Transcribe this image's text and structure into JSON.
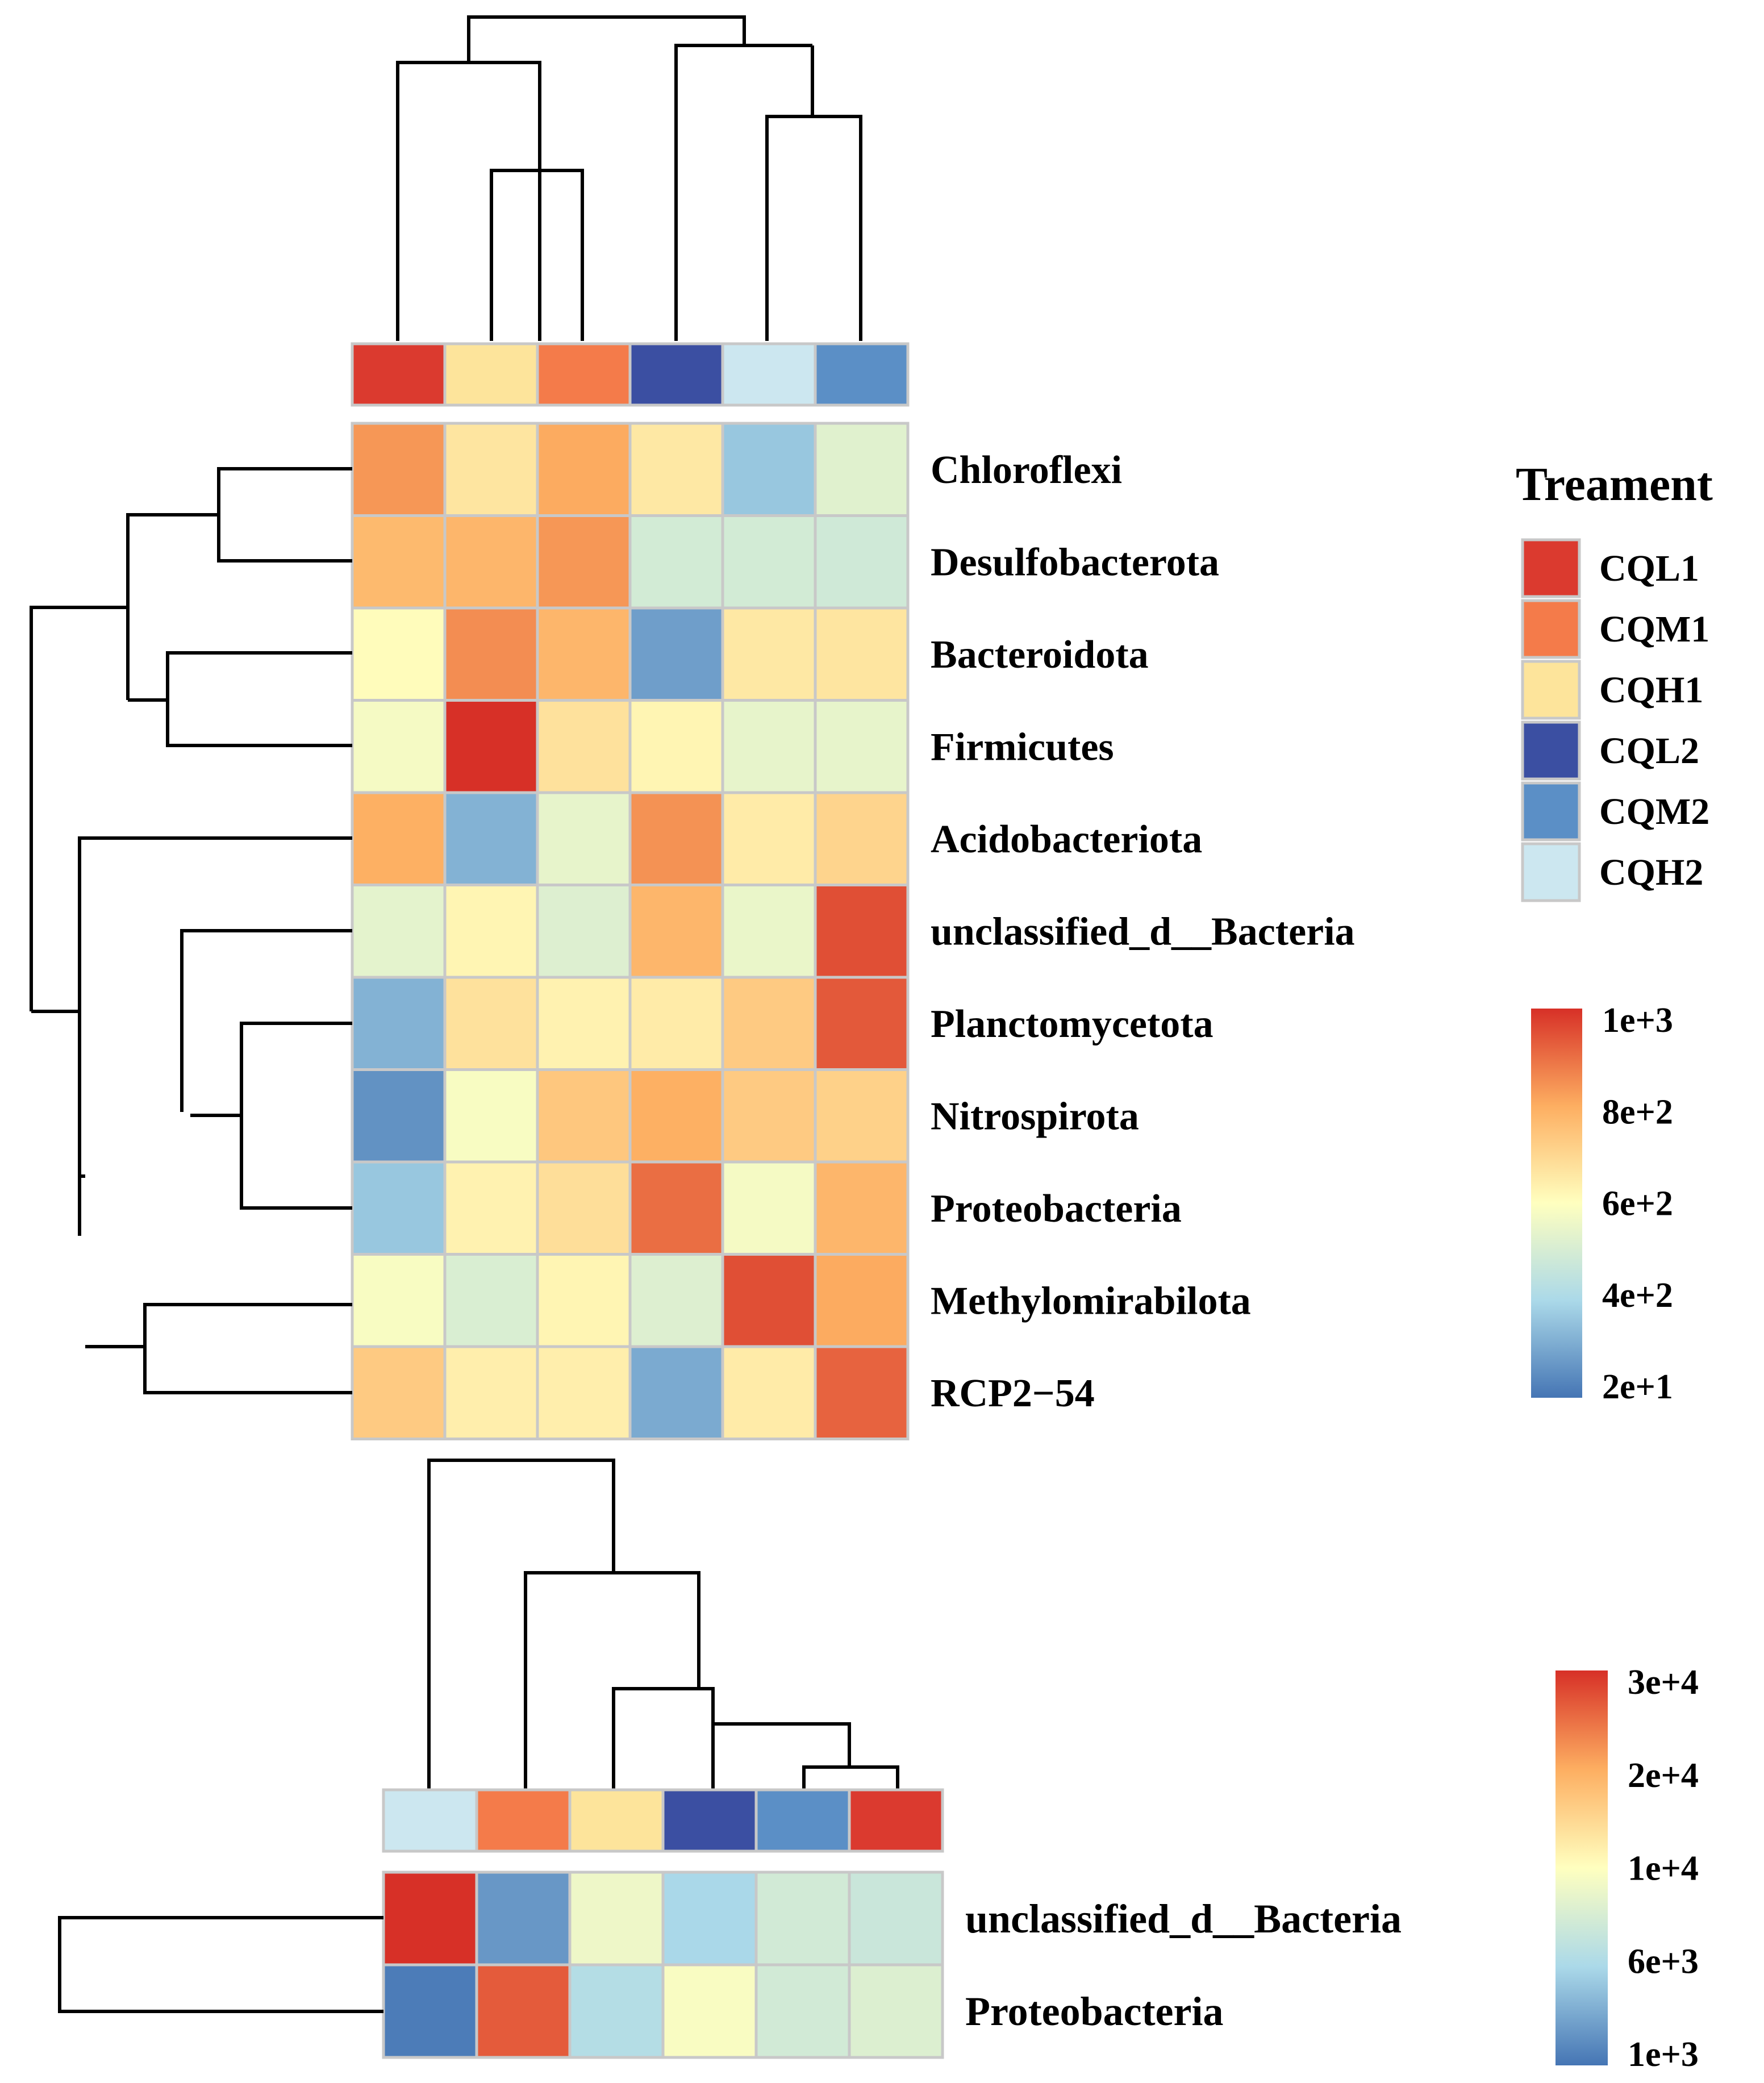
{
  "palette": {
    "heat": [
      "#4575b4",
      "#abd9e9",
      "#ffffbf",
      "#fdae61",
      "#d73027"
    ],
    "grid": "#c8c8c8"
  },
  "treatments": [
    {
      "name": "CQL1",
      "color": "#db3a2f"
    },
    {
      "name": "CQM1",
      "color": "#f47b4a"
    },
    {
      "name": "CQH1",
      "color": "#fde49b"
    },
    {
      "name": "CQL2",
      "color": "#3b4fa2"
    },
    {
      "name": "CQM2",
      "color": "#5b8fc6"
    },
    {
      "name": "CQH2",
      "color": "#cce7f0"
    }
  ],
  "legend": {
    "title": "Treament"
  },
  "chart_data": [
    {
      "type": "heatmap",
      "title": "",
      "columns": [
        "CQL1",
        "CQH1",
        "CQM1",
        "CQL2",
        "CQH2",
        "CQM2"
      ],
      "rows": [
        "Chloroflexi",
        "Desulfobacterota",
        "Bacteroidota",
        "Firmicutes",
        "Acidobacteriota",
        "unclassified_d__Bacteria",
        "Planctomycetota",
        "Nitrospirota",
        "Proteobacteria",
        "Methylomirabilota",
        "RCP2−54"
      ],
      "values": [
        [
          800,
          590,
          760,
          580,
          220,
          420
        ],
        [
          720,
          730,
          800,
          380,
          380,
          370
        ],
        [
          520,
          820,
          730,
          120,
          580,
          590
        ],
        [
          480,
          1000,
          600,
          540,
          440,
          440
        ],
        [
          750,
          170,
          440,
          810,
          570,
          640
        ],
        [
          430,
          540,
          410,
          730,
          450,
          940
        ],
        [
          170,
          600,
          550,
          570,
          670,
          920
        ],
        [
          90,
          490,
          680,
          750,
          670,
          650
        ],
        [
          220,
          550,
          610,
          880,
          480,
          730
        ],
        [
          490,
          400,
          540,
          410,
          940,
          760
        ],
        [
          670,
          560,
          560,
          150,
          570,
          900
        ]
      ],
      "colorbar": {
        "min": 20,
        "max": 1000,
        "ticks": [
          "1e+3",
          "8e+2",
          "6e+2",
          "4e+2",
          "2e+1"
        ]
      }
    },
    {
      "type": "heatmap",
      "title": "",
      "columns": [
        "CQH2",
        "CQM1",
        "CQH1",
        "CQL2",
        "CQM2",
        "CQL1"
      ],
      "rows": [
        "unclassified_d__Bacteria",
        "Proteobacteria"
      ],
      "values": [
        [
          30000,
          3500,
          14000,
          8200,
          11500,
          10800
        ],
        [
          1500,
          27500,
          9000,
          15000,
          11500,
          12500
        ]
      ],
      "colorbar": {
        "min": 1000,
        "max": 30000,
        "ticks": [
          "3e+4",
          "2e+4",
          "1e+4",
          "6e+3",
          "1e+3"
        ]
      }
    }
  ]
}
